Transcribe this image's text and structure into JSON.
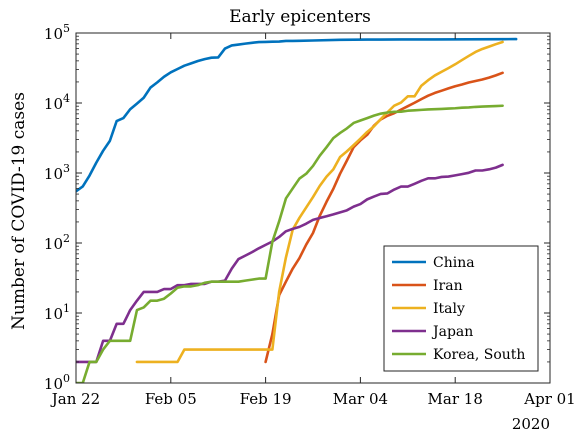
{
  "chart_data": {
    "type": "line",
    "title": "Early epicenters",
    "xlabel": "",
    "ylabel": "Number of COVID-19 cases",
    "yscale": "log",
    "ylim": [
      1,
      100000
    ],
    "xlim": [
      "2020-01-22",
      "2020-04-01"
    ],
    "x_ticks": [
      "2020-01-22",
      "2020-02-05",
      "2020-02-19",
      "2020-03-04",
      "2020-03-18",
      "2020-04-01"
    ],
    "x_tick_labels": [
      "Jan 22",
      "Feb 05",
      "Feb 19",
      "Mar 04",
      "Mar 18",
      "Apr 01"
    ],
    "x_secondary_label": "2020",
    "y_ticks": [
      1,
      10,
      100,
      1000,
      10000,
      100000
    ],
    "y_tick_labels": [
      {
        "base": "10",
        "exp": "0"
      },
      {
        "base": "10",
        "exp": "1"
      },
      {
        "base": "10",
        "exp": "2"
      },
      {
        "base": "10",
        "exp": "3"
      },
      {
        "base": "10",
        "exp": "4"
      },
      {
        "base": "10",
        "exp": "5"
      }
    ],
    "grid": false,
    "legend_position": "bottom-right",
    "series": [
      {
        "name": "China",
        "color": "#0072BD",
        "points": [
          [
            "2020-01-22",
            548
          ],
          [
            "2020-01-23",
            643
          ],
          [
            "2020-01-24",
            920
          ],
          [
            "2020-01-25",
            1406
          ],
          [
            "2020-01-26",
            2075
          ],
          [
            "2020-01-27",
            2877
          ],
          [
            "2020-01-28",
            5509
          ],
          [
            "2020-01-29",
            6087
          ],
          [
            "2020-01-30",
            8141
          ],
          [
            "2020-01-31",
            9802
          ],
          [
            "2020-02-01",
            11891
          ],
          [
            "2020-02-02",
            16630
          ],
          [
            "2020-02-03",
            19716
          ],
          [
            "2020-02-04",
            23707
          ],
          [
            "2020-02-05",
            27440
          ],
          [
            "2020-02-06",
            30587
          ],
          [
            "2020-02-07",
            34110
          ],
          [
            "2020-02-08",
            36814
          ],
          [
            "2020-02-09",
            39829
          ],
          [
            "2020-02-10",
            42354
          ],
          [
            "2020-02-11",
            44386
          ],
          [
            "2020-02-12",
            44759
          ],
          [
            "2020-02-13",
            59895
          ],
          [
            "2020-02-14",
            66358
          ],
          [
            "2020-02-15",
            68413
          ],
          [
            "2020-02-16",
            70513
          ],
          [
            "2020-02-17",
            72434
          ],
          [
            "2020-02-18",
            74211
          ],
          [
            "2020-02-19",
            74619
          ],
          [
            "2020-02-20",
            75077
          ],
          [
            "2020-02-21",
            75550
          ],
          [
            "2020-02-22",
            77001
          ],
          [
            "2020-02-23",
            77022
          ],
          [
            "2020-02-24",
            77241
          ],
          [
            "2020-02-26",
            78166
          ],
          [
            "2020-03-01",
            79968
          ],
          [
            "2020-03-05",
            80565
          ],
          [
            "2020-03-10",
            80860
          ],
          [
            "2020-03-15",
            81003
          ],
          [
            "2020-03-20",
            81250
          ],
          [
            "2020-03-25",
            81661
          ],
          [
            "2020-03-27",
            81897
          ]
        ]
      },
      {
        "name": "Iran",
        "color": "#D95319",
        "points": [
          [
            "2020-02-19",
            2
          ],
          [
            "2020-02-20",
            5
          ],
          [
            "2020-02-21",
            18
          ],
          [
            "2020-02-22",
            28
          ],
          [
            "2020-02-23",
            43
          ],
          [
            "2020-02-24",
            61
          ],
          [
            "2020-02-25",
            95
          ],
          [
            "2020-02-26",
            139
          ],
          [
            "2020-02-27",
            245
          ],
          [
            "2020-02-28",
            388
          ],
          [
            "2020-02-29",
            593
          ],
          [
            "2020-03-01",
            978
          ],
          [
            "2020-03-02",
            1501
          ],
          [
            "2020-03-03",
            2336
          ],
          [
            "2020-03-04",
            2922
          ],
          [
            "2020-03-05",
            3513
          ],
          [
            "2020-03-06",
            4747
          ],
          [
            "2020-03-07",
            5823
          ],
          [
            "2020-03-08",
            6566
          ],
          [
            "2020-03-09",
            7161
          ],
          [
            "2020-03-10",
            8042
          ],
          [
            "2020-03-11",
            9000
          ],
          [
            "2020-03-12",
            10075
          ],
          [
            "2020-03-13",
            11364
          ],
          [
            "2020-03-14",
            12729
          ],
          [
            "2020-03-15",
            13938
          ],
          [
            "2020-03-16",
            14991
          ],
          [
            "2020-03-17",
            16169
          ],
          [
            "2020-03-18",
            17361
          ],
          [
            "2020-03-19",
            18407
          ],
          [
            "2020-03-20",
            19644
          ],
          [
            "2020-03-21",
            20610
          ],
          [
            "2020-03-22",
            21638
          ],
          [
            "2020-03-23",
            23049
          ],
          [
            "2020-03-24",
            24811
          ],
          [
            "2020-03-25",
            27017
          ]
        ]
      },
      {
        "name": "Italy",
        "color": "#EDB120",
        "points": [
          [
            "2020-01-31",
            2
          ],
          [
            "2020-02-06",
            2
          ],
          [
            "2020-02-07",
            3
          ],
          [
            "2020-02-20",
            3
          ],
          [
            "2020-02-21",
            20
          ],
          [
            "2020-02-22",
            62
          ],
          [
            "2020-02-23",
            155
          ],
          [
            "2020-02-24",
            229
          ],
          [
            "2020-02-25",
            322
          ],
          [
            "2020-02-26",
            453
          ],
          [
            "2020-02-27",
            655
          ],
          [
            "2020-02-28",
            888
          ],
          [
            "2020-02-29",
            1128
          ],
          [
            "2020-03-01",
            1694
          ],
          [
            "2020-03-02",
            2036
          ],
          [
            "2020-03-03",
            2502
          ],
          [
            "2020-03-04",
            3089
          ],
          [
            "2020-03-05",
            3858
          ],
          [
            "2020-03-06",
            4636
          ],
          [
            "2020-03-07",
            5883
          ],
          [
            "2020-03-08",
            7375
          ],
          [
            "2020-03-09",
            9172
          ],
          [
            "2020-03-10",
            10149
          ],
          [
            "2020-03-11",
            12462
          ],
          [
            "2020-03-12",
            12462
          ],
          [
            "2020-03-13",
            17660
          ],
          [
            "2020-03-14",
            21157
          ],
          [
            "2020-03-15",
            24747
          ],
          [
            "2020-03-16",
            27980
          ],
          [
            "2020-03-17",
            31506
          ],
          [
            "2020-03-18",
            35713
          ],
          [
            "2020-03-19",
            41035
          ],
          [
            "2020-03-20",
            47021
          ],
          [
            "2020-03-21",
            53578
          ],
          [
            "2020-03-22",
            59138
          ],
          [
            "2020-03-23",
            63927
          ],
          [
            "2020-03-24",
            69176
          ],
          [
            "2020-03-25",
            74386
          ]
        ]
      },
      {
        "name": "Japan",
        "color": "#7E2F8E",
        "points": [
          [
            "2020-01-22",
            2
          ],
          [
            "2020-01-24",
            2
          ],
          [
            "2020-01-25",
            2
          ],
          [
            "2020-01-26",
            4
          ],
          [
            "2020-01-27",
            4
          ],
          [
            "2020-01-28",
            7
          ],
          [
            "2020-01-29",
            7
          ],
          [
            "2020-01-30",
            11
          ],
          [
            "2020-01-31",
            15
          ],
          [
            "2020-02-01",
            20
          ],
          [
            "2020-02-02",
            20
          ],
          [
            "2020-02-03",
            20
          ],
          [
            "2020-02-04",
            22
          ],
          [
            "2020-02-05",
            22
          ],
          [
            "2020-02-06",
            25
          ],
          [
            "2020-02-07",
            25
          ],
          [
            "2020-02-08",
            26
          ],
          [
            "2020-02-09",
            26
          ],
          [
            "2020-02-10",
            26
          ],
          [
            "2020-02-11",
            28
          ],
          [
            "2020-02-12",
            28
          ],
          [
            "2020-02-13",
            29
          ],
          [
            "2020-02-14",
            43
          ],
          [
            "2020-02-15",
            59
          ],
          [
            "2020-02-16",
            66
          ],
          [
            "2020-02-17",
            74
          ],
          [
            "2020-02-18",
            84
          ],
          [
            "2020-02-19",
            94
          ],
          [
            "2020-02-20",
            105
          ],
          [
            "2020-02-21",
            122
          ],
          [
            "2020-02-22",
            147
          ],
          [
            "2020-02-23",
            159
          ],
          [
            "2020-02-24",
            170
          ],
          [
            "2020-02-25",
            189
          ],
          [
            "2020-02-26",
            214
          ],
          [
            "2020-02-27",
            228
          ],
          [
            "2020-02-28",
            241
          ],
          [
            "2020-02-29",
            256
          ],
          [
            "2020-03-01",
            274
          ],
          [
            "2020-03-02",
            293
          ],
          [
            "2020-03-03",
            331
          ],
          [
            "2020-03-04",
            360
          ],
          [
            "2020-03-05",
            420
          ],
          [
            "2020-03-06",
            461
          ],
          [
            "2020-03-07",
            502
          ],
          [
            "2020-03-08",
            511
          ],
          [
            "2020-03-09",
            581
          ],
          [
            "2020-03-10",
            639
          ],
          [
            "2020-03-11",
            639
          ],
          [
            "2020-03-12",
            701
          ],
          [
            "2020-03-13",
            773
          ],
          [
            "2020-03-14",
            839
          ],
          [
            "2020-03-15",
            839
          ],
          [
            "2020-03-16",
            878
          ],
          [
            "2020-03-17",
            889
          ],
          [
            "2020-03-18",
            924
          ],
          [
            "2020-03-19",
            963
          ],
          [
            "2020-03-20",
            1007
          ],
          [
            "2020-03-21",
            1086
          ],
          [
            "2020-03-22",
            1086
          ],
          [
            "2020-03-23",
            1128
          ],
          [
            "2020-03-24",
            1193
          ],
          [
            "2020-03-25",
            1307
          ]
        ]
      },
      {
        "name": "Korea, South",
        "color": "#77AC30",
        "points": [
          [
            "2020-01-22",
            1
          ],
          [
            "2020-01-23",
            1
          ],
          [
            "2020-01-24",
            2
          ],
          [
            "2020-01-25",
            2
          ],
          [
            "2020-01-26",
            3
          ],
          [
            "2020-01-27",
            4
          ],
          [
            "2020-01-28",
            4
          ],
          [
            "2020-01-29",
            4
          ],
          [
            "2020-01-30",
            4
          ],
          [
            "2020-01-31",
            11
          ],
          [
            "2020-02-01",
            12
          ],
          [
            "2020-02-02",
            15
          ],
          [
            "2020-02-03",
            15
          ],
          [
            "2020-02-04",
            16
          ],
          [
            "2020-02-05",
            19
          ],
          [
            "2020-02-06",
            23
          ],
          [
            "2020-02-07",
            24
          ],
          [
            "2020-02-08",
            24
          ],
          [
            "2020-02-09",
            25
          ],
          [
            "2020-02-10",
            27
          ],
          [
            "2020-02-11",
            28
          ],
          [
            "2020-02-12",
            28
          ],
          [
            "2020-02-13",
            28
          ],
          [
            "2020-02-14",
            28
          ],
          [
            "2020-02-15",
            28
          ],
          [
            "2020-02-16",
            29
          ],
          [
            "2020-02-17",
            30
          ],
          [
            "2020-02-18",
            31
          ],
          [
            "2020-02-19",
            31
          ],
          [
            "2020-02-20",
            104
          ],
          [
            "2020-02-21",
            204
          ],
          [
            "2020-02-22",
            433
          ],
          [
            "2020-02-23",
            602
          ],
          [
            "2020-02-24",
            833
          ],
          [
            "2020-02-25",
            977
          ],
          [
            "2020-02-26",
            1261
          ],
          [
            "2020-02-27",
            1766
          ],
          [
            "2020-02-28",
            2337
          ],
          [
            "2020-02-29",
            3150
          ],
          [
            "2020-03-01",
            3736
          ],
          [
            "2020-03-02",
            4335
          ],
          [
            "2020-03-03",
            5186
          ],
          [
            "2020-03-04",
            5621
          ],
          [
            "2020-03-05",
            6088
          ],
          [
            "2020-03-06",
            6593
          ],
          [
            "2020-03-07",
            7041
          ],
          [
            "2020-03-08",
            7314
          ],
          [
            "2020-03-09",
            7478
          ],
          [
            "2020-03-10",
            7513
          ],
          [
            "2020-03-11",
            7755
          ],
          [
            "2020-03-12",
            7869
          ],
          [
            "2020-03-13",
            7979
          ],
          [
            "2020-03-14",
            8086
          ],
          [
            "2020-03-15",
            8162
          ],
          [
            "2020-03-16",
            8236
          ],
          [
            "2020-03-17",
            8320
          ],
          [
            "2020-03-18",
            8413
          ],
          [
            "2020-03-19",
            8565
          ],
          [
            "2020-03-20",
            8652
          ],
          [
            "2020-03-21",
            8799
          ],
          [
            "2020-03-22",
            8897
          ],
          [
            "2020-03-23",
            8961
          ],
          [
            "2020-03-24",
            9037
          ],
          [
            "2020-03-25",
            9137
          ]
        ]
      }
    ]
  }
}
